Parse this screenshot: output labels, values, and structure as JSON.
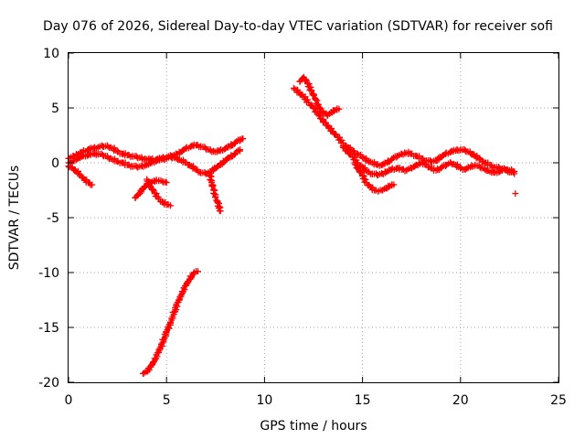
{
  "chart_data": {
    "type": "scatter",
    "title": "Day 076 of 2026, Sidereal Day-to-day VTEC variation (SDTVAR) for receiver sofi",
    "xlabel": "GPS time / hours",
    "ylabel": "SDTVAR / TECUs",
    "xlim": [
      0,
      25
    ],
    "ylim": [
      -20,
      10
    ],
    "xticks": [
      "0",
      "5",
      "10",
      "15",
      "20",
      "25"
    ],
    "yticks": [
      "-20",
      "-15",
      "-10",
      "-5",
      "0",
      "5",
      "10"
    ],
    "grid": true,
    "marker": "+",
    "marker_color": "#ff0000",
    "series": [
      {
        "name": "arc-1",
        "x": [
          0.0,
          0.25,
          0.5,
          0.75,
          1.0,
          1.25,
          1.5,
          1.75,
          2.0,
          2.25,
          2.5,
          2.75,
          3.0,
          3.25,
          3.5,
          3.75,
          4.0,
          4.25,
          4.5,
          4.75,
          5.0,
          5.25,
          5.5,
          5.75,
          6.0,
          6.25,
          6.5,
          6.75,
          7.0,
          7.25,
          7.5,
          7.75,
          8.0,
          8.25,
          8.5,
          8.75,
          8.9
        ],
        "y": [
          0.4,
          0.6,
          0.8,
          1.0,
          1.2,
          1.3,
          1.4,
          1.5,
          1.5,
          1.3,
          1.0,
          0.8,
          0.7,
          0.6,
          0.5,
          0.4,
          0.3,
          0.3,
          0.3,
          0.4,
          0.5,
          0.6,
          0.8,
          1.0,
          1.3,
          1.5,
          1.6,
          1.5,
          1.3,
          1.1,
          1.0,
          1.1,
          1.3,
          1.5,
          1.8,
          2.1,
          2.2
        ]
      },
      {
        "name": "arc-2",
        "x": [
          0.0,
          0.25,
          0.5,
          0.75,
          1.0,
          1.25,
          1.5,
          1.75,
          2.0,
          2.25,
          2.5,
          2.75,
          3.0,
          3.25,
          3.5,
          3.75,
          4.0,
          4.25,
          4.5,
          4.75,
          5.0,
          5.25,
          5.5,
          5.75,
          6.0,
          6.25,
          6.5,
          6.75,
          7.0,
          7.25,
          7.5,
          7.75,
          8.0,
          8.25,
          8.5,
          8.75
        ],
        "y": [
          0.0,
          0.2,
          0.4,
          0.6,
          0.7,
          0.8,
          0.8,
          0.7,
          0.5,
          0.3,
          0.1,
          0.0,
          -0.2,
          -0.3,
          -0.4,
          -0.3,
          -0.2,
          0.0,
          0.2,
          0.3,
          0.4,
          0.5,
          0.4,
          0.2,
          0.0,
          -0.3,
          -0.6,
          -0.9,
          -1.0,
          -0.8,
          -0.5,
          -0.2,
          0.2,
          0.5,
          0.8,
          1.2
        ]
      },
      {
        "name": "arc-3",
        "x": [
          0.0,
          0.2,
          0.4,
          0.6,
          0.8,
          1.0,
          1.2
        ],
        "y": [
          -0.3,
          -0.5,
          -0.8,
          -1.1,
          -1.5,
          -1.8,
          -2.0
        ]
      },
      {
        "name": "arc-4",
        "x": [
          3.4,
          3.6,
          3.8,
          4.0,
          4.2,
          4.4,
          4.6,
          4.8,
          5.0
        ],
        "y": [
          -3.2,
          -2.8,
          -2.4,
          -2.0,
          -1.8,
          -1.7,
          -1.6,
          -1.7,
          -1.8
        ]
      },
      {
        "name": "arc-5",
        "x": [
          4.0,
          4.2,
          4.4,
          4.6,
          4.8,
          5.0,
          5.2
        ],
        "y": [
          -1.5,
          -2.2,
          -2.8,
          -3.3,
          -3.6,
          -3.8,
          -3.9
        ]
      },
      {
        "name": "arc-6",
        "x": [
          7.2,
          7.3,
          7.4,
          7.5,
          7.6,
          7.7,
          7.75
        ],
        "y": [
          -1.0,
          -1.8,
          -2.5,
          -3.1,
          -3.6,
          -4.0,
          -4.4
        ]
      },
      {
        "name": "arc-7",
        "x": [
          3.8,
          4.0,
          4.2,
          4.4,
          4.6,
          4.8,
          5.0,
          5.2,
          5.4,
          5.6,
          5.8,
          6.0,
          6.2,
          6.4,
          6.6
        ],
        "y": [
          -19.2,
          -19.0,
          -18.6,
          -18.0,
          -17.3,
          -16.4,
          -15.5,
          -14.6,
          -13.6,
          -12.7,
          -11.9,
          -11.2,
          -10.6,
          -10.0,
          -9.9
        ]
      },
      {
        "name": "arc-8",
        "x": [
          11.5,
          11.75,
          12.0,
          12.25,
          12.5,
          12.75,
          13.0,
          13.25,
          13.5,
          13.75,
          14.0,
          14.25,
          14.5,
          14.75,
          15.0,
          15.25,
          15.5,
          15.75,
          16.0,
          16.25,
          16.5,
          16.75,
          17.0,
          17.25,
          17.5,
          17.75,
          18.0,
          18.25,
          18.5,
          18.75,
          19.0,
          19.25,
          19.5,
          19.75,
          20.0,
          20.25,
          20.5,
          20.75,
          21.0,
          21.25,
          21.5,
          21.75,
          22.0,
          22.25,
          22.5,
          22.75
        ],
        "y": [
          6.8,
          6.4,
          6.0,
          5.5,
          5.0,
          4.4,
          3.8,
          3.3,
          2.8,
          2.3,
          1.8,
          1.4,
          1.1,
          0.8,
          0.5,
          0.2,
          0.0,
          -0.2,
          -0.2,
          0.0,
          0.3,
          0.6,
          0.8,
          0.9,
          0.8,
          0.6,
          0.4,
          0.2,
          0.1,
          0.2,
          0.5,
          0.8,
          1.0,
          1.1,
          1.2,
          1.1,
          0.9,
          0.6,
          0.3,
          0.0,
          -0.2,
          -0.4,
          -0.5,
          -0.6,
          -0.7,
          -0.8
        ]
      },
      {
        "name": "arc-9",
        "x": [
          11.8,
          12.0,
          12.2,
          12.4,
          12.6,
          12.8,
          13.0,
          13.2,
          13.4,
          13.6,
          13.8
        ],
        "y": [
          7.4,
          7.8,
          7.2,
          6.6,
          5.8,
          5.0,
          4.6,
          4.3,
          4.6,
          4.8,
          4.9
        ]
      },
      {
        "name": "arc-10",
        "x": [
          14.0,
          14.25,
          14.5,
          14.75,
          15.0,
          15.25,
          15.5,
          15.75,
          16.0,
          16.25,
          16.5,
          16.75,
          17.0,
          17.25,
          17.5,
          17.75,
          18.0,
          18.25,
          18.5,
          18.75,
          19.0,
          19.25,
          19.5,
          19.75,
          20.0,
          20.25,
          20.5,
          20.75,
          21.0,
          21.25,
          21.5,
          21.75,
          22.0,
          22.25,
          22.5,
          22.75
        ],
        "y": [
          1.5,
          1.0,
          0.5,
          0.0,
          -0.4,
          -0.8,
          -1.0,
          -1.1,
          -1.0,
          -0.8,
          -0.6,
          -0.5,
          -0.6,
          -0.7,
          -0.5,
          -0.2,
          0.0,
          -0.2,
          -0.5,
          -0.7,
          -0.5,
          -0.2,
          0.0,
          -0.2,
          -0.5,
          -0.6,
          -0.4,
          -0.2,
          -0.4,
          -0.6,
          -0.8,
          -0.9,
          -0.8,
          -0.6,
          -0.8,
          -1.0
        ]
      },
      {
        "name": "arc-11",
        "x": [
          14.6,
          14.8,
          15.0,
          15.2,
          15.4,
          15.6,
          15.8,
          16.0,
          16.2,
          16.4,
          16.6
        ],
        "y": [
          0.0,
          -0.6,
          -1.2,
          -1.8,
          -2.2,
          -2.5,
          -2.6,
          -2.5,
          -2.3,
          -2.1,
          -2.0
        ]
      },
      {
        "name": "arc-12",
        "x": [
          22.8
        ],
        "y": [
          -2.8
        ]
      }
    ]
  }
}
